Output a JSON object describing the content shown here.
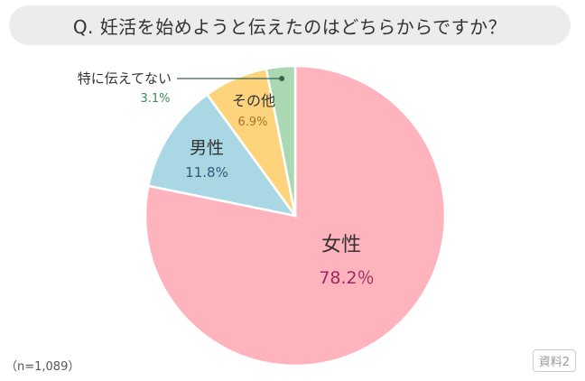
{
  "title": "Q. 妊活を始めようと伝えたのはどちらからですか？",
  "chart_data": {
    "type": "pie",
    "slices": [
      {
        "label": "女性",
        "value": 78.2,
        "value_text": "78.2％",
        "color": "#ffb3bd",
        "value_color": "#9b2a5e"
      },
      {
        "label": "男性",
        "value": 11.8,
        "value_text": "11.8%",
        "color": "#a9d7e3",
        "value_color": "#2f5a7a"
      },
      {
        "label": "その他",
        "value": 6.9,
        "value_text": "6.9%",
        "color": "#fdd37c",
        "value_color": "#a8732a"
      },
      {
        "label": "特に伝えてない",
        "value": 3.1,
        "value_text": "3.1%",
        "color": "#a9d8b3",
        "value_color": "#3e8a5a"
      }
    ]
  },
  "sample_size": "（n=1,089）",
  "reference": "資料2"
}
